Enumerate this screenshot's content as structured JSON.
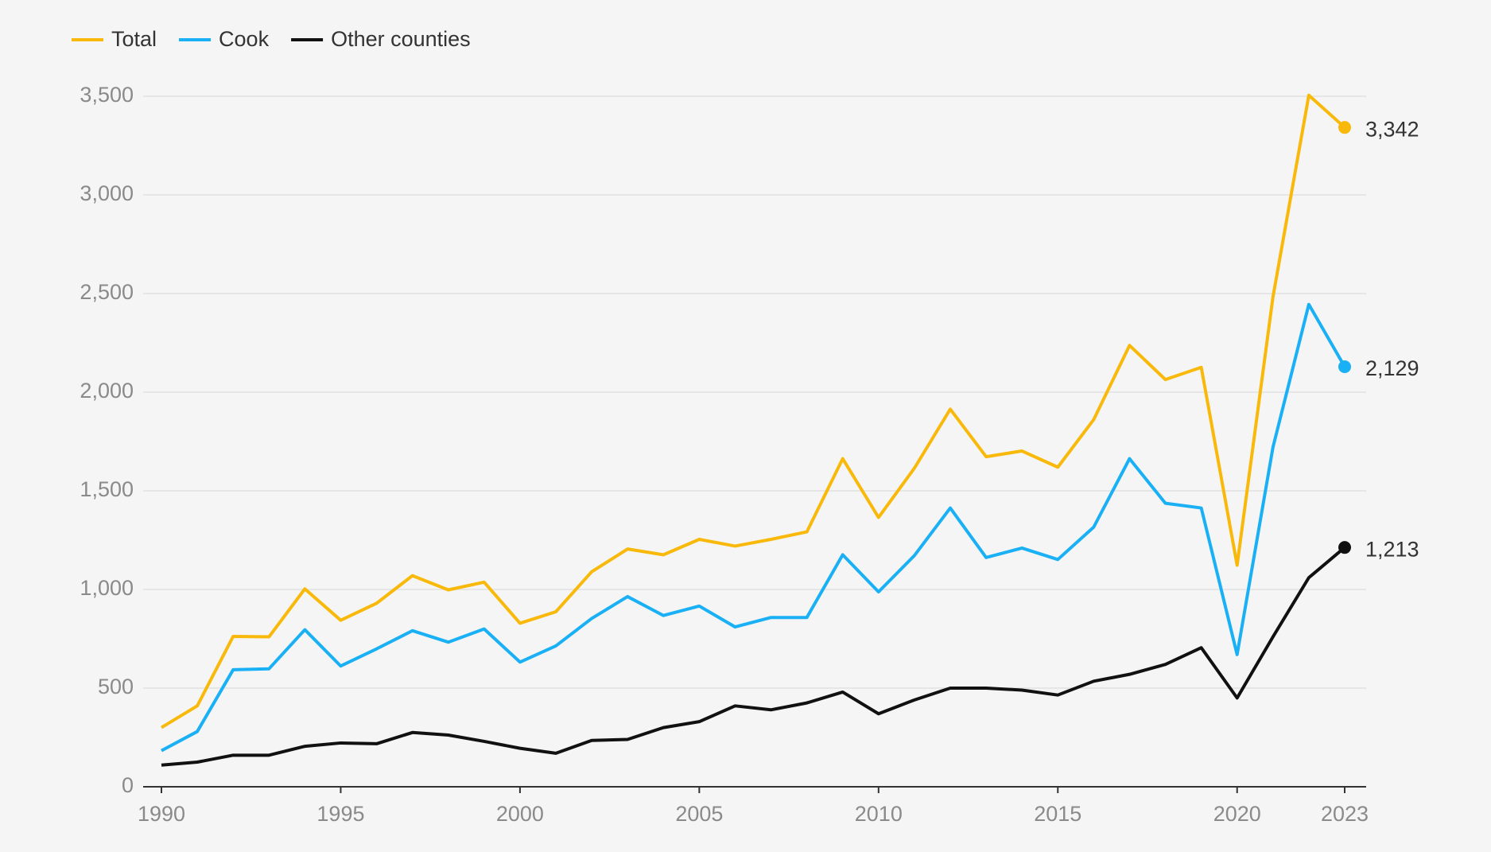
{
  "chart_data": {
    "type": "line",
    "x": [
      1990,
      1991,
      1992,
      1993,
      1994,
      1995,
      1996,
      1997,
      1998,
      1999,
      2000,
      2001,
      2002,
      2003,
      2004,
      2005,
      2006,
      2007,
      2008,
      2009,
      2010,
      2011,
      2012,
      2013,
      2014,
      2015,
      2016,
      2017,
      2018,
      2019,
      2020,
      2021,
      2022,
      2023
    ],
    "series": [
      {
        "name": "Total",
        "color": "#f9b90b",
        "values": [
          300,
          410,
          762,
          760,
          1003,
          844,
          930,
          1070,
          998,
          1037,
          829,
          887,
          1090,
          1205,
          1176,
          1254,
          1220,
          1254,
          1292,
          1663,
          1365,
          1615,
          1914,
          1673,
          1702,
          1620,
          1861,
          2237,
          2064,
          2126,
          1123,
          2483,
          3505,
          3342
        ],
        "value_labels": [
          null,
          null,
          null,
          null,
          null,
          null,
          null,
          null,
          null,
          null,
          null,
          null,
          null,
          null,
          null,
          null,
          null,
          null,
          null,
          null,
          null,
          null,
          null,
          null,
          null,
          null,
          null,
          null,
          null,
          null,
          null,
          null,
          null,
          "3,342"
        ]
      },
      {
        "name": "Cook",
        "color": "#1ab0f5",
        "values": [
          183,
          280,
          593,
          598,
          796,
          612,
          699,
          791,
          733,
          800,
          632,
          714,
          853,
          964,
          868,
          916,
          810,
          858,
          858,
          1176,
          988,
          1172,
          1413,
          1162,
          1210,
          1152,
          1316,
          1663,
          1437,
          1413,
          670,
          1721,
          2445,
          2129
        ],
        "value_labels": [
          null,
          null,
          null,
          null,
          null,
          null,
          null,
          null,
          null,
          null,
          null,
          null,
          null,
          null,
          null,
          null,
          null,
          null,
          null,
          null,
          null,
          null,
          null,
          null,
          null,
          null,
          null,
          null,
          null,
          null,
          null,
          null,
          null,
          "2,129"
        ]
      },
      {
        "name": "Other counties",
        "color": "#111111",
        "values": [
          110,
          125,
          160,
          160,
          205,
          222,
          218,
          275,
          262,
          230,
          195,
          170,
          235,
          240,
          300,
          330,
          410,
          390,
          425,
          480,
          370,
          440,
          500,
          500,
          490,
          465,
          535,
          570,
          620,
          705,
          450,
          760,
          1060,
          1213
        ],
        "value_labels": [
          null,
          null,
          null,
          null,
          null,
          null,
          null,
          null,
          null,
          null,
          null,
          null,
          null,
          null,
          null,
          null,
          null,
          null,
          null,
          null,
          null,
          null,
          null,
          null,
          null,
          null,
          null,
          null,
          null,
          null,
          null,
          null,
          null,
          "1,213"
        ]
      }
    ],
    "xlim": [
      1990,
      2023
    ],
    "xticks": [
      1990,
      1995,
      2000,
      2005,
      2010,
      2015,
      2020,
      2023
    ],
    "ylim": [
      0,
      3500
    ],
    "yticks": [
      0,
      {
        "value": 500,
        "label": "500"
      },
      {
        "value": 1000,
        "label": "1,000"
      },
      {
        "value": 1500,
        "label": "1,500"
      },
      {
        "value": 2000,
        "label": "2,000"
      },
      {
        "value": 2500,
        "label": "2,500"
      },
      {
        "value": 3000,
        "label": "3,000"
      },
      {
        "value": 3500,
        "label": "3,500"
      }
    ],
    "grid": true,
    "legend": "top-left"
  }
}
